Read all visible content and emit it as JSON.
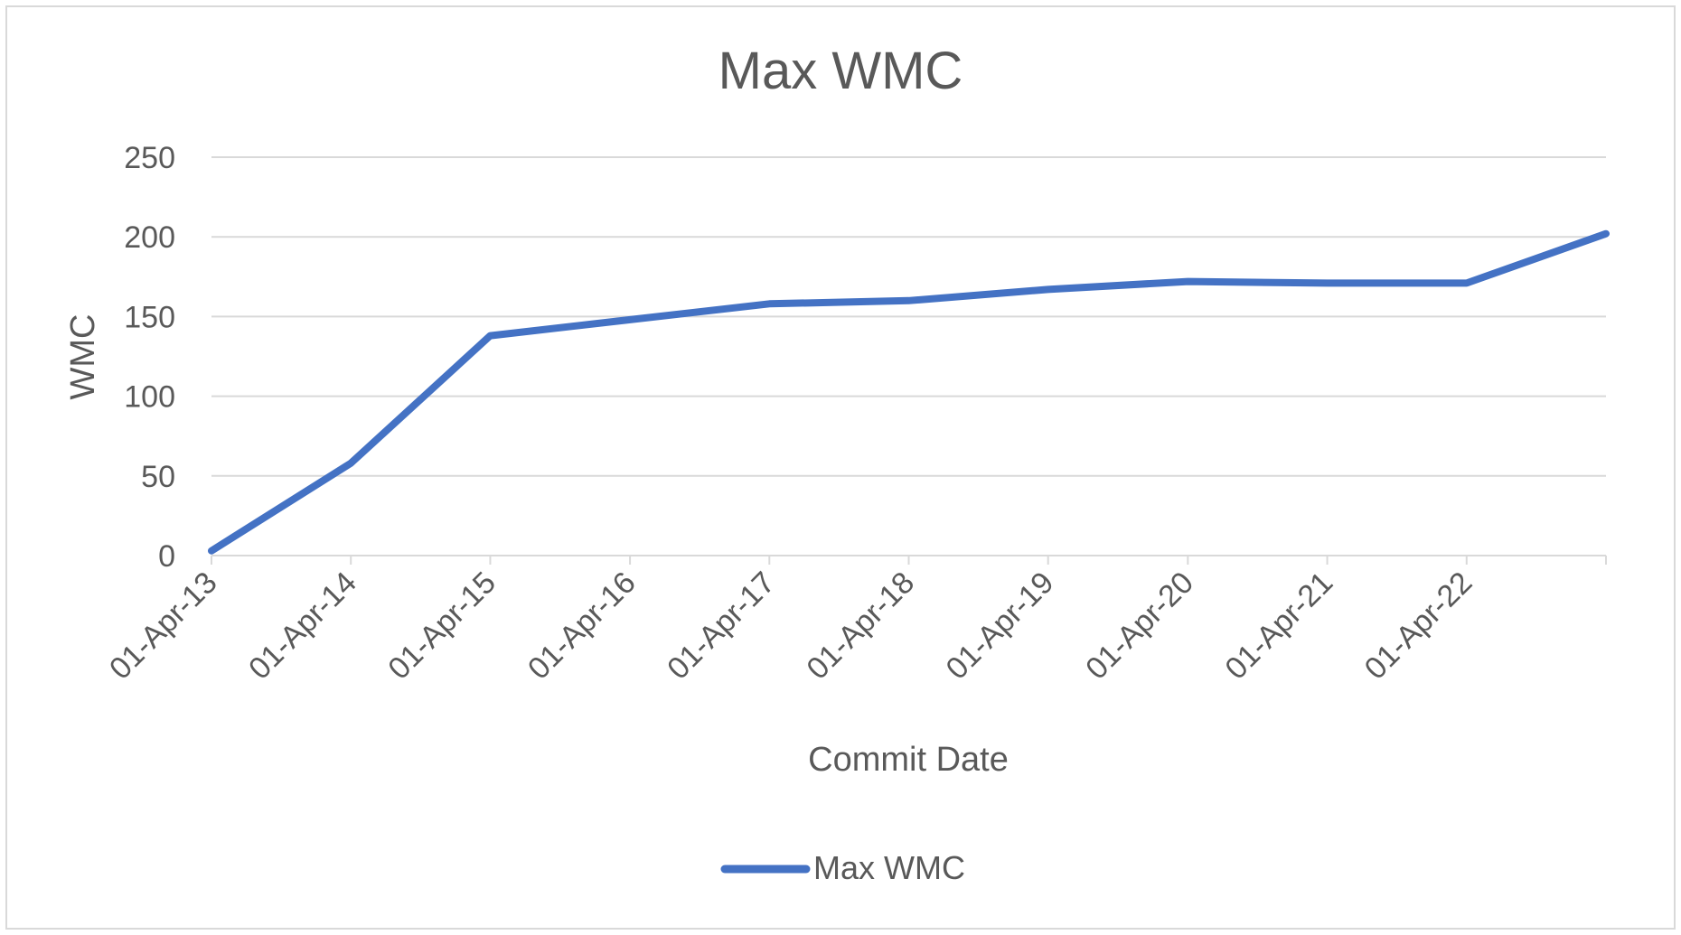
{
  "chart_data": {
    "type": "line",
    "title": "Max WMC",
    "xlabel": "Commit Date",
    "ylabel": "WMC",
    "ylim": [
      0,
      250
    ],
    "yticks": [
      0,
      50,
      100,
      150,
      200,
      250
    ],
    "xticks": [
      "01-Apr-13",
      "01-Apr-14",
      "01-Apr-15",
      "01-Apr-16",
      "01-Apr-17",
      "01-Apr-18",
      "01-Apr-19",
      "01-Apr-20",
      "01-Apr-21",
      "01-Apr-22"
    ],
    "xrange": [
      "2013-04-01",
      "2023-04-01"
    ],
    "grid": true,
    "legend_position": "bottom",
    "series": [
      {
        "name": "Max WMC",
        "color": "#4472C4",
        "points": [
          {
            "x": "2013-04-01",
            "y": 3
          },
          {
            "x": "2014-04-01",
            "y": 58
          },
          {
            "x": "2015-04-01",
            "y": 138
          },
          {
            "x": "2016-04-01",
            "y": 148
          },
          {
            "x": "2017-04-01",
            "y": 158
          },
          {
            "x": "2018-04-01",
            "y": 160
          },
          {
            "x": "2019-04-01",
            "y": 167
          },
          {
            "x": "2020-04-01",
            "y": 172
          },
          {
            "x": "2021-04-01",
            "y": 171
          },
          {
            "x": "2022-04-01",
            "y": 171
          },
          {
            "x": "2023-04-01",
            "y": 202
          }
        ]
      }
    ]
  }
}
